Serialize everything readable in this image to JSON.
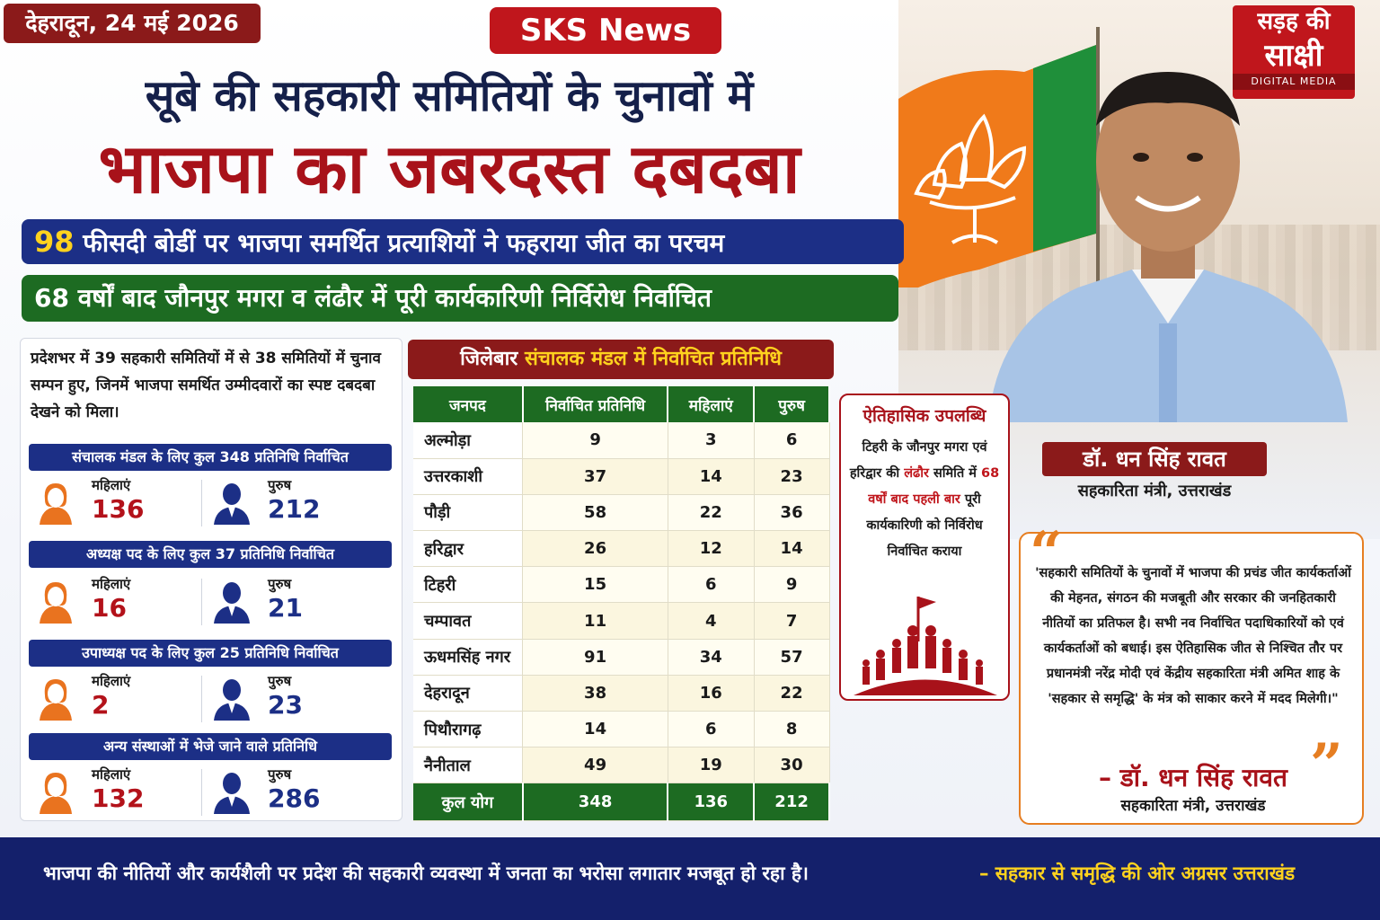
{
  "header": {
    "date": "देहरादून, 24 मई 2026",
    "brand": "SKS News",
    "headline_line1": "सूबे की सहकारी समितियों के चुनावों में",
    "headline_line2": "भाजपा का जबरदस्त दबदबा",
    "banner1_highlight": "98",
    "banner1_text": " फीसदी बोडीं पर भाजपा समर्थित प्रत्याशियों ने फहराया जीत का परचम",
    "banner2_text": "68 वर्षों बाद जौनपुर मगरा व लंढौर में पूरी कार्यकारिणी निर्विरोध निर्वाचित"
  },
  "logo": {
    "line1": "सड़ह की",
    "line2": "साक्षी",
    "line3": "DIGITAL MEDIA"
  },
  "minister": {
    "name": "डॉ. धन सिंह रावत",
    "role": "सहकारिता मंत्री, उत्तराखंड"
  },
  "stats": {
    "intro": "प्रदेशभर में 39 सहकारी समितियों में से 38 समितियों में चुनाव सम्पन हुए, जिनमें भाजपा समर्थित उम्मीदवारों का स्पष्ट दबदबा देखने को मिला।",
    "female_label": "महिलाएं",
    "male_label": "पुरुष",
    "sections": [
      {
        "title": "संचालक मंडल के लिए कुल 348 प्रतिनिधि निर्वाचित",
        "female": "136",
        "male": "212"
      },
      {
        "title": "अध्यक्ष पद के लिए कुल 37 प्रतिनिधि निर्वाचित",
        "female": "16",
        "male": "21"
      },
      {
        "title": "उपाध्यक्ष पद के लिए कुल 25 प्रतिनिधि निर्वाचित",
        "female": "2",
        "male": "23"
      },
      {
        "title": "अन्य संस्थाओं में भेजे जाने वाले प्रतिनिधि",
        "female": "132",
        "male": "286"
      }
    ]
  },
  "table": {
    "title_prefix": "जिलेबार ",
    "title_highlight": "संचालक मंडल में निर्वाचित प्रतिनिधि",
    "headers": [
      "जनपद",
      "निर्वाचित प्रतिनिधि",
      "महिलाएं",
      "पुरुष"
    ],
    "rows": [
      [
        "अल्मोड़ा",
        "9",
        "3",
        "6"
      ],
      [
        "उत्तरकाशी",
        "37",
        "14",
        "23"
      ],
      [
        "पौड़ी",
        "58",
        "22",
        "36"
      ],
      [
        "हरिद्वार",
        "26",
        "12",
        "14"
      ],
      [
        "टिहरी",
        "15",
        "6",
        "9"
      ],
      [
        "चम्पावत",
        "11",
        "4",
        "7"
      ],
      [
        "ऊधमसिंह नगर",
        "91",
        "34",
        "57"
      ],
      [
        "देहरादून",
        "38",
        "16",
        "22"
      ],
      [
        "पिथौरागढ़",
        "14",
        "6",
        "8"
      ],
      [
        "नैनीताल",
        "49",
        "19",
        "30"
      ]
    ],
    "total": [
      "कुल योग",
      "348",
      "136",
      "212"
    ]
  },
  "achievement": {
    "title": "ऐतिहासिक उपलब्धि",
    "text_a": "टिहरी के जौनपुर मगरा एवं हरिद्वार की ",
    "text_red1": "लंढौर",
    "text_b": " समिति में ",
    "text_red2": "68 वर्षों बाद पहली बार",
    "text_c": " पूरी कार्यकारिणी को निर्विरोध निर्वाचित कराया"
  },
  "quote": {
    "text": "'सहकारी समितियों के चुनावों में भाजपा की प्रचंड जीत कार्यकर्ताओं की मेहनत, संगठन की मजबूती और सरकार की जनहितकारी नीतियों का प्रतिफल है। सभी नव निर्वाचित पदाधिकारियों को एवं कार्यकर्ताओं को बधाई। इस ऐतिहासिक जीत से निश्चित तौर पर प्रधानमंत्री नरेंद्र मोदी एवं केंद्रीय सहकारिता मंत्री अमित शाह के 'सहकार से समृद्धि' के मंत्र को साकार करने में मदद मिलेगी।\"",
    "author": "– डॉ. धन सिंह रावत",
    "role": "सहकारिता मंत्री, उत्तराखंड"
  },
  "footer": {
    "text": "भाजपा की नीतियों और कार्यशैली पर प्रदेश की सहकारी व्यवस्था में जनता का भरोसा लगातार मजबूत हो रहा है।",
    "tagline": "– सहकार से समृद्धि की ओर अग्रसर उत्तराखंड"
  },
  "colors": {
    "female_num": "#b3121a",
    "male_num": "#1c2f86",
    "female_icon": "#e9731f",
    "male_icon": "#1c2f86"
  }
}
